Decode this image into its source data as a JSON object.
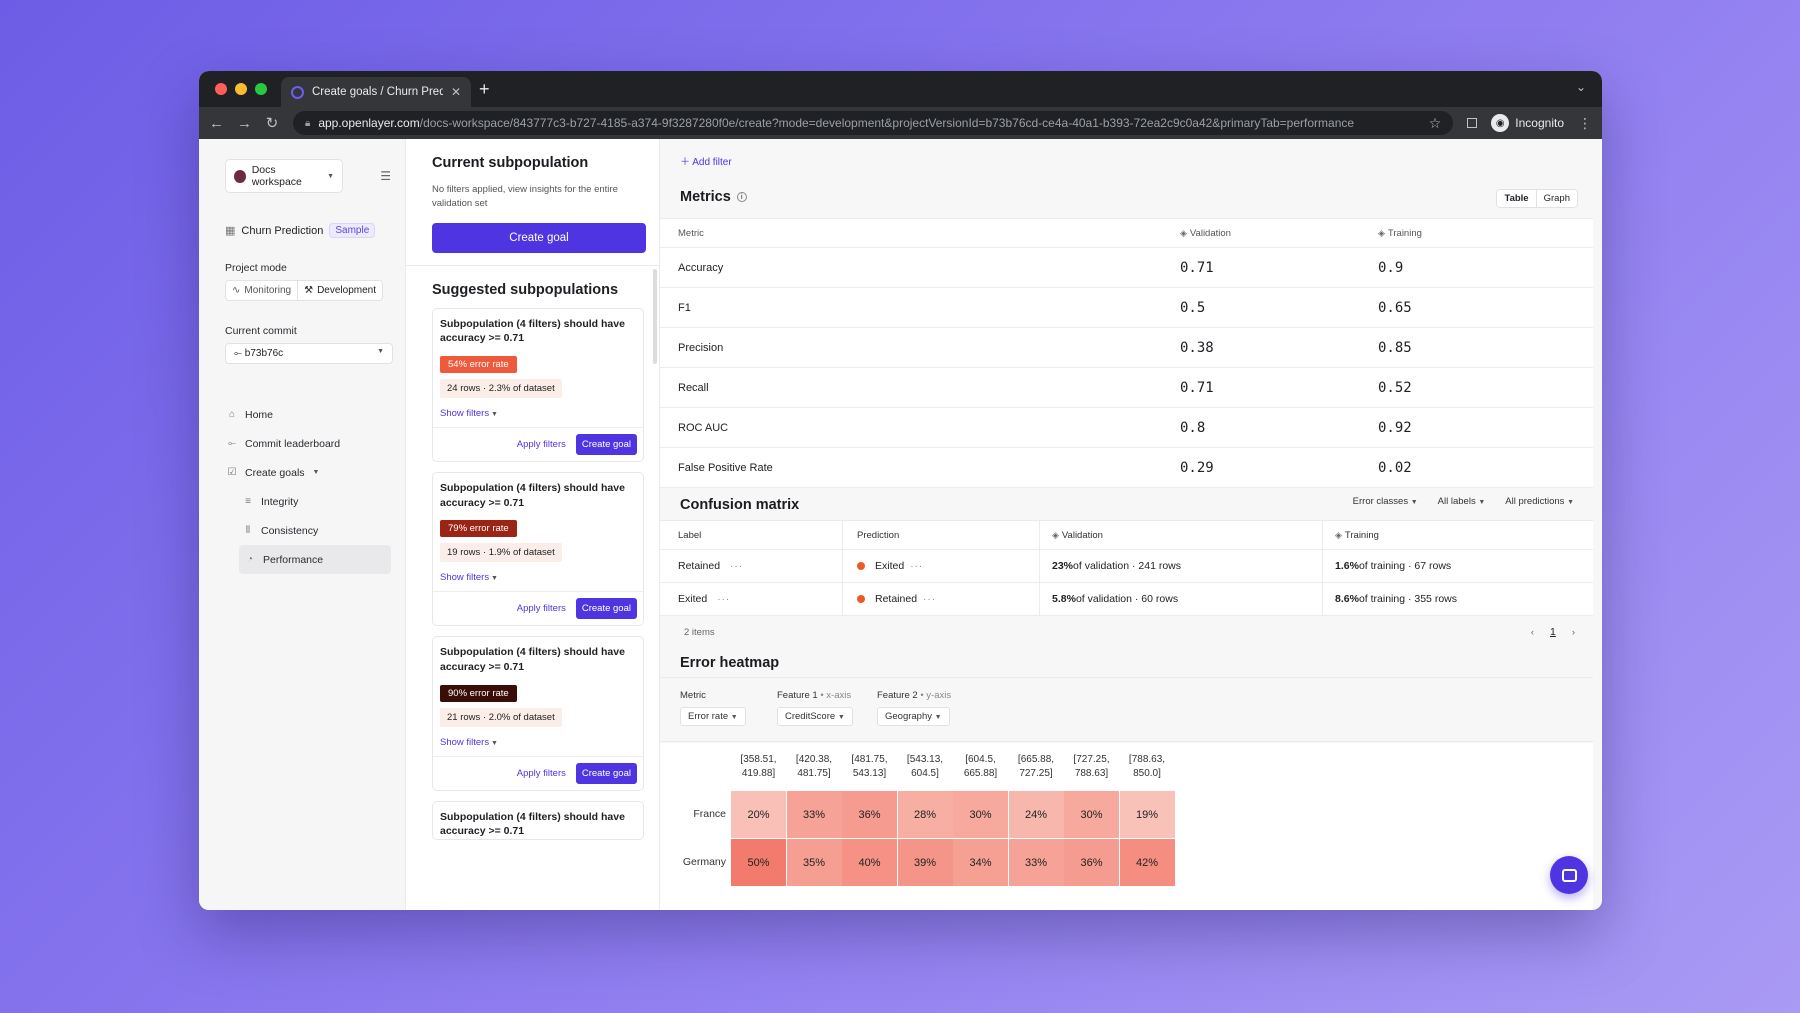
{
  "browser": {
    "tab_title": "Create goals / Churn Predictio",
    "tab_close": "✕",
    "new_tab": "+",
    "url_host": "app.openlayer.com",
    "url_path": "/docs-workspace/843777c3-b727-4185-a374-9f3287280f0e/create?mode=development&projectVersionId=b73b76cd-ce4a-40a1-b393-72ea2c9c0a42&primaryTab=performance",
    "profile_label": "Incognito"
  },
  "sidebar": {
    "workspace": "Docs workspace",
    "project_name": "Churn Prediction",
    "project_badge": "Sample",
    "project_mode_label": "Project mode",
    "modes": [
      "Monitoring",
      "Development"
    ],
    "current_commit_label": "Current commit",
    "commit": "b73b76c",
    "nav": {
      "home": "Home",
      "commit_leaderboard": "Commit leaderboard",
      "create_goals": "Create goals",
      "integrity": "Integrity",
      "consistency": "Consistency",
      "performance": "Performance"
    }
  },
  "subpop": {
    "title": "Current subpopulation",
    "desc": "No filters applied, view insights for the entire validation set",
    "create_goal": "Create goal",
    "suggested_title": "Suggested subpopulations",
    "show_filters": "Show filters",
    "apply_filters": "Apply filters",
    "card_create": "Create goal",
    "cards": [
      {
        "title": "Subpopulation (4 filters) should have accuracy >= 0.71",
        "error": "54% error rate",
        "rows": "24 rows · 2.3% of dataset",
        "color": "#ef5a3c"
      },
      {
        "title": "Subpopulation (4 filters) should have accuracy >= 0.71",
        "error": "79% error rate",
        "rows": "19 rows · 1.9% of dataset",
        "color": "#9b2414"
      },
      {
        "title": "Subpopulation (4 filters) should have accuracy >= 0.71",
        "error": "90% error rate",
        "rows": "21 rows · 2.0% of dataset",
        "color": "#3b0d08"
      },
      {
        "title": "Subpopulation (4 filters) should have accuracy >= 0.71"
      }
    ]
  },
  "main": {
    "add_filter": "Add filter",
    "metrics_title": "Metrics",
    "view_toggle": [
      "Table",
      "Graph"
    ],
    "metrics_headers": [
      "Metric",
      "Validation",
      "Training"
    ],
    "metrics": [
      {
        "name": "Accuracy",
        "validation": "0.71",
        "training": "0.9"
      },
      {
        "name": "F1",
        "validation": "0.5",
        "training": "0.65"
      },
      {
        "name": "Precision",
        "validation": "0.38",
        "training": "0.85"
      },
      {
        "name": "Recall",
        "validation": "0.71",
        "training": "0.52"
      },
      {
        "name": "ROC AUC",
        "validation": "0.8",
        "training": "0.92"
      },
      {
        "name": "False Positive Rate",
        "validation": "0.29",
        "training": "0.02"
      }
    ],
    "cm_title": "Confusion matrix",
    "cm_filters": [
      "Error classes",
      "All labels",
      "All predictions"
    ],
    "cm_headers": [
      "Label",
      "Prediction",
      "Validation",
      "Training"
    ],
    "cm_rows": [
      {
        "label": "Retained",
        "prediction": "Exited",
        "val_pct": "23%",
        "val_rest": " of validation · 241 rows",
        "train_pct": "1.6%",
        "train_rest": " of training · 67 rows"
      },
      {
        "label": "Exited",
        "prediction": "Retained",
        "val_pct": "5.8%",
        "val_rest": " of validation · 60 rows",
        "train_pct": "8.6%",
        "train_rest": " of training · 355 rows"
      }
    ],
    "cm_count": "2 items",
    "page": "1",
    "heatmap_title": "Error heatmap",
    "hm_metric_label": "Metric",
    "hm_metric": "Error rate",
    "hm_f1_label": "Feature 1",
    "hm_f1_axis": "• x-axis",
    "hm_f1": "CreditScore",
    "hm_f2_label": "Feature 2",
    "hm_f2_axis": "• y-axis",
    "hm_f2": "Geography"
  },
  "chart_data": {
    "type": "heatmap",
    "title": "Error heatmap",
    "xlabel": "CreditScore",
    "ylabel": "Geography",
    "x": [
      [
        "[358.51,",
        "419.88]"
      ],
      [
        "[420.38,",
        "481.75]"
      ],
      [
        "[481.75,",
        "543.13]"
      ],
      [
        "[543.13,",
        "604.5]"
      ],
      [
        "[604.5,",
        "665.88]"
      ],
      [
        "[665.88,",
        "727.25]"
      ],
      [
        "[727.25,",
        "788.63]"
      ],
      [
        "[788.63,",
        "850.0]"
      ]
    ],
    "y": [
      "France",
      "Germany"
    ],
    "values": [
      [
        20,
        33,
        36,
        28,
        30,
        24,
        30,
        19
      ],
      [
        50,
        35,
        40,
        39,
        34,
        33,
        36,
        42
      ]
    ]
  }
}
